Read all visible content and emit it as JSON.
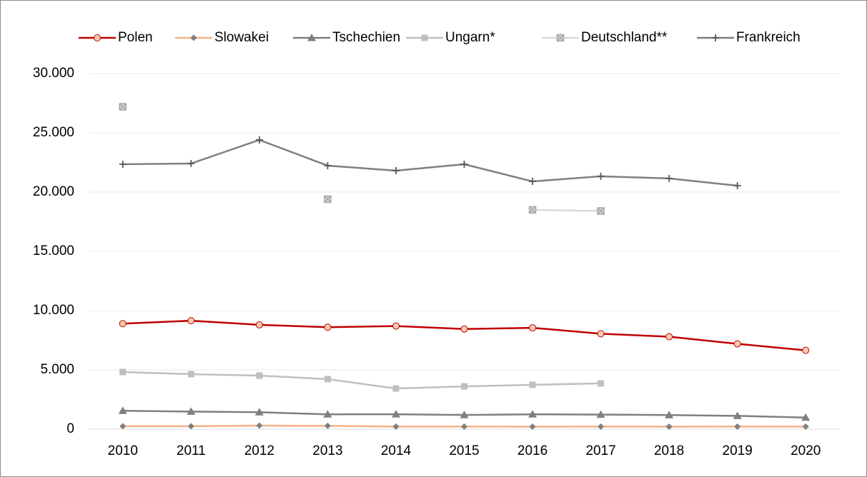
{
  "chart_data": {
    "type": "line",
    "categories": [
      "2010",
      "2011",
      "2012",
      "2013",
      "2014",
      "2015",
      "2016",
      "2017",
      "2018",
      "2019",
      "2020"
    ],
    "ylim": [
      0,
      30000
    ],
    "yticks": [
      {
        "value": 0,
        "label": "0"
      },
      {
        "value": 5000,
        "label": "5.000"
      },
      {
        "value": 10000,
        "label": "10.000"
      },
      {
        "value": 15000,
        "label": "15.000"
      },
      {
        "value": 20000,
        "label": "20.000"
      },
      {
        "value": 25000,
        "label": "25.000"
      },
      {
        "value": 30000,
        "label": "30.000"
      }
    ],
    "grid": true,
    "legend": "top",
    "series": [
      {
        "name": "Polen",
        "color": "#c00000",
        "marker": "circle",
        "marker_color": "#f8cbad",
        "values": [
          8900,
          9150,
          8800,
          8600,
          8700,
          8450,
          8550,
          8050,
          7800,
          7200,
          6650
        ]
      },
      {
        "name": "Slowakei",
        "color": "#f4b183",
        "marker": "diamond",
        "marker_color": "#7f7f7f",
        "values": [
          250,
          250,
          300,
          280,
          220,
          220,
          210,
          220,
          210,
          220,
          220
        ]
      },
      {
        "name": "Tschechien",
        "color": "#7f7f7f",
        "marker": "triangle",
        "marker_color": "#7f7f7f",
        "values": [
          1550,
          1480,
          1430,
          1250,
          1260,
          1200,
          1250,
          1230,
          1190,
          1120,
          980
        ]
      },
      {
        "name": "Ungarn*",
        "color": "#bfbfbf",
        "marker": "square",
        "marker_color": "#bfbfbf",
        "values": [
          4820,
          4640,
          4520,
          4220,
          3430,
          3610,
          3740,
          3860,
          null,
          null,
          null
        ]
      },
      {
        "name": "Deutschland**",
        "color": "#d9d9d9",
        "marker": "x",
        "marker_color": "#a6a6a6",
        "values": [
          27200,
          null,
          null,
          19400,
          null,
          null,
          18500,
          18400,
          null,
          null,
          null
        ]
      },
      {
        "name": "Frankreich",
        "color": "#7f7f7f",
        "marker": "plus",
        "marker_color": "#595959",
        "values": [
          22350,
          22410,
          24400,
          22230,
          21810,
          22350,
          20900,
          21330,
          21150,
          20540,
          null
        ]
      }
    ]
  }
}
